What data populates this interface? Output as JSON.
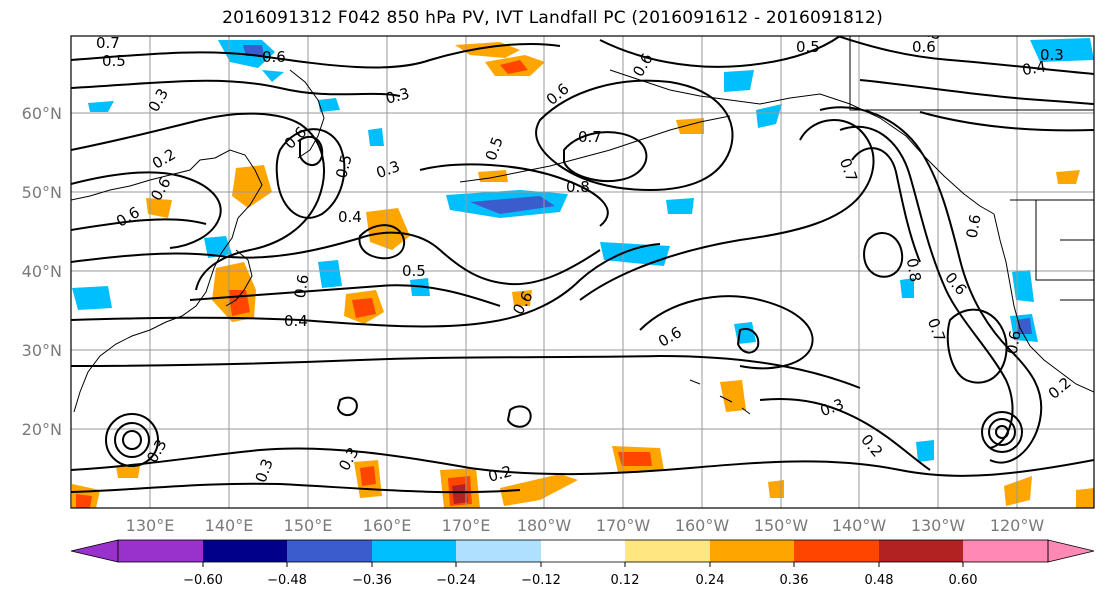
{
  "title": "2016091312 F042 850 hPa PV, IVT Landfall PC (2016091612 - 2016091812)",
  "map": {
    "lat_ticks": [
      "60°N",
      "50°N",
      "40°N",
      "30°N",
      "20°N"
    ],
    "lon_ticks": [
      "130°E",
      "140°E",
      "150°E",
      "160°E",
      "170°E",
      "180°W",
      "170°W",
      "160°W",
      "150°W",
      "140°W",
      "130°W",
      "120°W"
    ],
    "contour_labels": [
      "0.7",
      "0.5",
      "0.6",
      "0.3",
      "0.3",
      "0.6",
      "0.5",
      "0.3",
      "0.2",
      "0.6",
      "0.6",
      "0.5",
      "0.7",
      "0.8",
      "0.6",
      "0.5",
      "0.6",
      "0.4",
      "0.5",
      "0.6",
      "0.4",
      "0.6",
      "0.6",
      "0.5",
      "0.6",
      "0.4",
      "0.3",
      "0.7",
      "0.8",
      "0.6",
      "0.6",
      "0.7",
      "0.6",
      "0.3",
      "0.2",
      "0.3",
      "0.3",
      "0.2",
      "0.2",
      "0.3"
    ]
  },
  "colorbar": {
    "tick_labels": [
      "−0.60",
      "−0.48",
      "−0.36",
      "−0.24",
      "−0.12",
      "0.12",
      "0.24",
      "0.36",
      "0.48",
      "0.60"
    ],
    "bin_colors": [
      "#9932cc",
      "#00008b",
      "#3a5ccc",
      "#00bfff",
      "#b0e0ff",
      "#ffffff",
      "#ffe680",
      "#ffa500",
      "#ff4500",
      "#b22222",
      "#ff88b4"
    ]
  },
  "colors": {
    "axis_tick": "#7a7a7a",
    "grid": "#999999",
    "contour": "#000000"
  }
}
